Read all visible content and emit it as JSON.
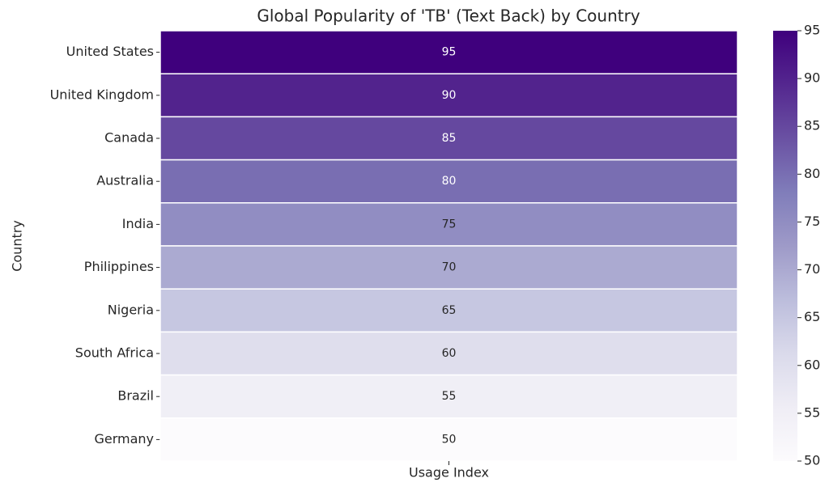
{
  "chart_data": {
    "type": "heatmap",
    "title": "Global Popularity of 'TB' (Text Back) by Country",
    "ylabel": "Country",
    "columns": [
      "Usage Index"
    ],
    "categories": [
      "United States",
      "United Kingdom",
      "Canada",
      "Australia",
      "India",
      "Philippines",
      "Nigeria",
      "South Africa",
      "Brazil",
      "Germany"
    ],
    "values": [
      95,
      90,
      85,
      80,
      75,
      70,
      65,
      60,
      55,
      50
    ],
    "colormap": [
      "#fcfbfd",
      "#efedf5",
      "#dadaeb",
      "#bcbddc",
      "#9e9ac8",
      "#807dba",
      "#6a51a3",
      "#54278f",
      "#3f007d"
    ],
    "clim": [
      50,
      95
    ],
    "cticks": [
      50,
      55,
      60,
      65,
      70,
      75,
      80,
      85,
      90,
      95
    ]
  }
}
